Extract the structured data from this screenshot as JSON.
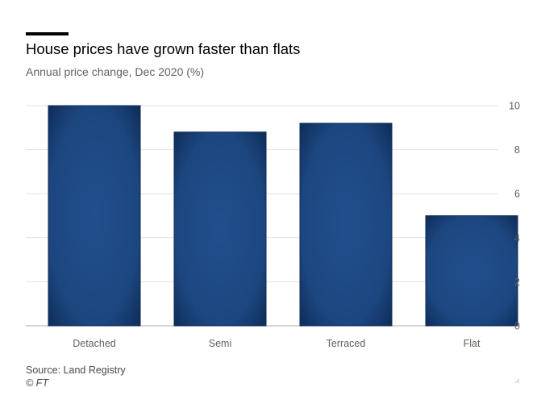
{
  "header": {
    "title": "House prices have grown faster than flats",
    "subtitle": "Annual price change, Dec 2020 (%)"
  },
  "footer": {
    "source": "Source: Land Registry",
    "copyright": "© FT"
  },
  "colors": {
    "bar_fill": "#1e4b87",
    "bar_edge": "#0c2a56",
    "gridline": "#e6e1dc",
    "axis_text": "#66605c",
    "baseline": "#b3ada8"
  },
  "chart_data": {
    "type": "bar",
    "categories": [
      "Detached",
      "Semi",
      "Terraced",
      "Flat"
    ],
    "values": [
      10.0,
      8.8,
      9.2,
      5.0
    ],
    "title": "House prices have grown faster than flats",
    "subtitle": "Annual price change, Dec 2020 (%)",
    "ylim": [
      0,
      10
    ],
    "yticks": [
      0,
      2,
      4,
      6,
      8,
      10
    ],
    "ytick_labels": [
      "0",
      "2",
      "4",
      "6",
      "8",
      "10"
    ],
    "y_axis_side": "right",
    "grid": true
  }
}
